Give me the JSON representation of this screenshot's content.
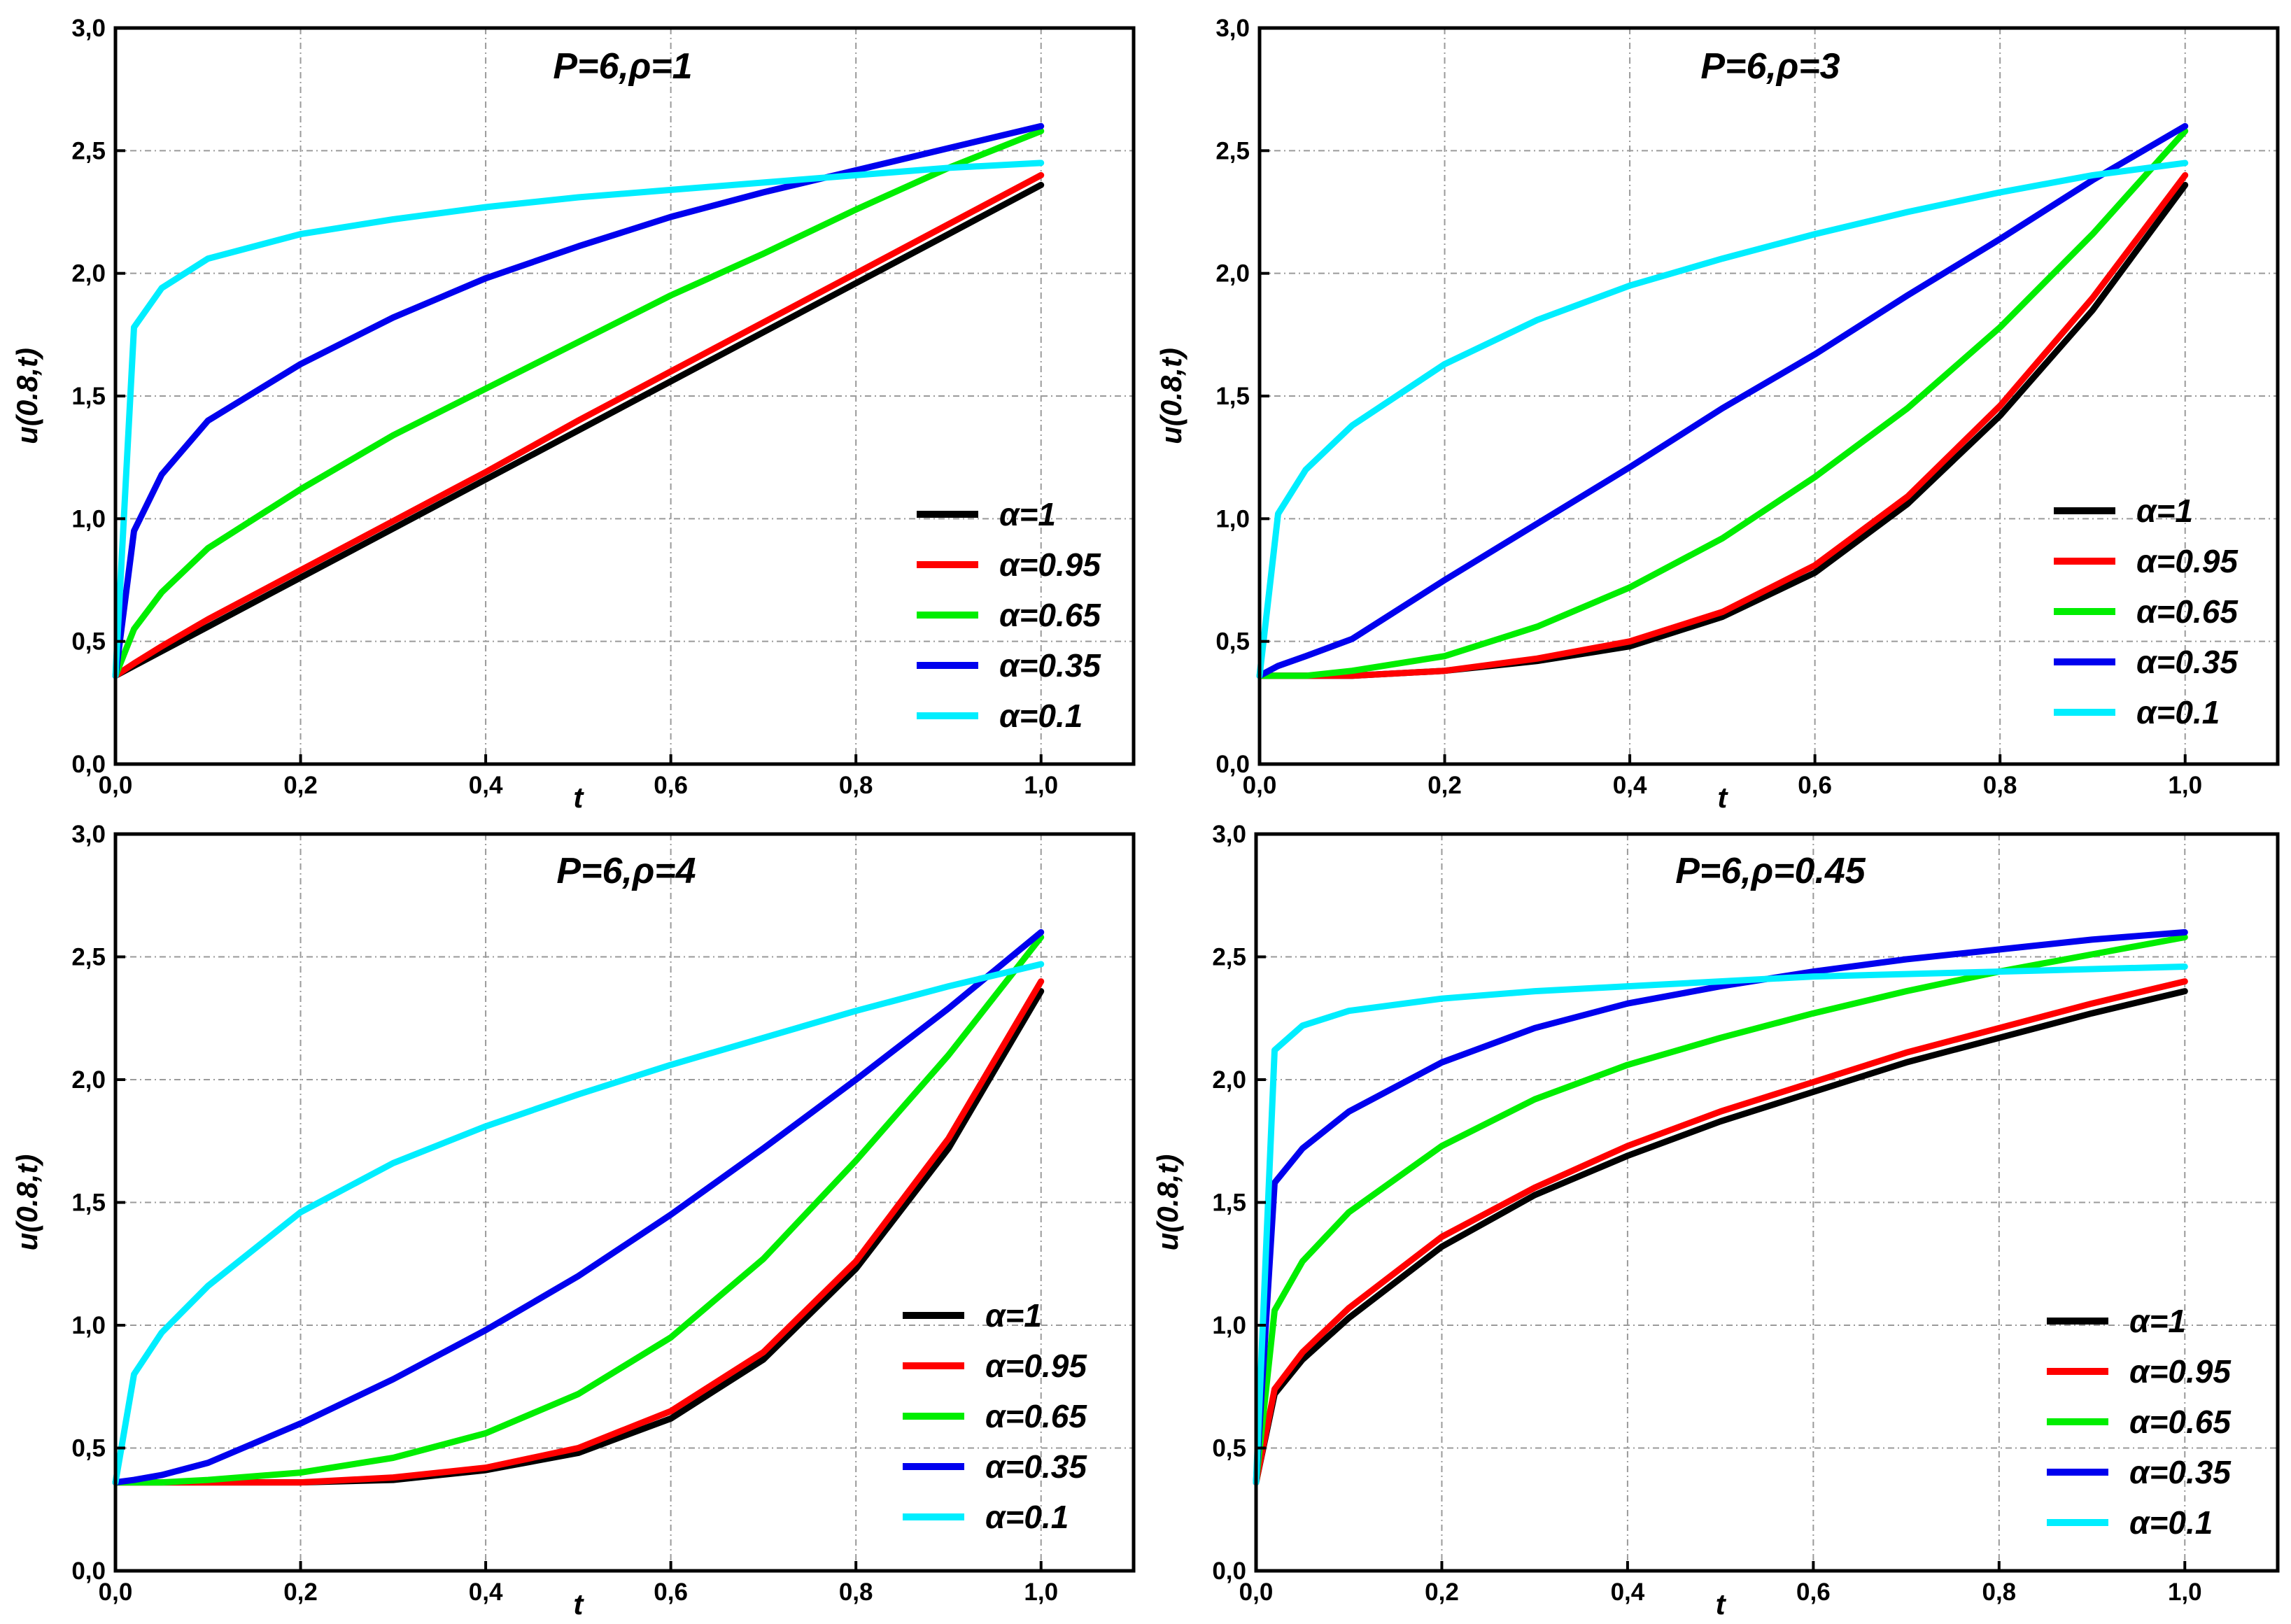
{
  "chart_data": [
    {
      "type": "line",
      "title": "P=6,ρ=1",
      "xlabel": "t",
      "ylabel": "u(0.8,t)",
      "xlim": [
        0,
        1.1
      ],
      "ylim": [
        0,
        3.0
      ],
      "x_ticks": [
        "0,0",
        "0,2",
        "0,4",
        "0,6",
        "0,8",
        "1,0"
      ],
      "y_ticks": [
        "0,0",
        "0,5",
        "1,0",
        "1,5",
        "2,0",
        "2,5",
        "3,0"
      ],
      "grid": true,
      "legend_position": "bottom-right",
      "x": [
        0.0,
        0.02,
        0.05,
        0.1,
        0.2,
        0.3,
        0.4,
        0.5,
        0.6,
        0.7,
        0.8,
        0.9,
        1.0
      ],
      "series": [
        {
          "name": "α=1",
          "color": "#000000",
          "values": [
            0.36,
            0.4,
            0.46,
            0.56,
            0.76,
            0.96,
            1.16,
            1.36,
            1.56,
            1.76,
            1.96,
            2.16,
            2.36
          ]
        },
        {
          "name": "α=0.95",
          "color": "#ff0000",
          "values": [
            0.36,
            0.41,
            0.48,
            0.59,
            0.79,
            0.99,
            1.19,
            1.4,
            1.6,
            1.8,
            2.0,
            2.2,
            2.4
          ]
        },
        {
          "name": "α=0.65",
          "color": "#00ee00",
          "values": [
            0.36,
            0.55,
            0.7,
            0.88,
            1.12,
            1.34,
            1.53,
            1.72,
            1.91,
            2.08,
            2.26,
            2.43,
            2.58
          ]
        },
        {
          "name": "α=0.35",
          "color": "#0000ee",
          "values": [
            0.36,
            0.95,
            1.18,
            1.4,
            1.63,
            1.82,
            1.98,
            2.11,
            2.23,
            2.33,
            2.42,
            2.51,
            2.6
          ]
        },
        {
          "name": "α=0.1",
          "color": "#00eeff",
          "values": [
            0.36,
            1.78,
            1.94,
            2.06,
            2.16,
            2.22,
            2.27,
            2.31,
            2.34,
            2.37,
            2.4,
            2.43,
            2.45
          ]
        }
      ]
    },
    {
      "type": "line",
      "title": "P=6,ρ=3",
      "xlabel": "t",
      "ylabel": "u(0.8,t)",
      "xlim": [
        0,
        1.1
      ],
      "ylim": [
        0,
        3.0
      ],
      "x_ticks": [
        "0,0",
        "0,2",
        "0,4",
        "0,6",
        "0,8",
        "1,0"
      ],
      "y_ticks": [
        "0,0",
        "0,5",
        "1,0",
        "1,5",
        "2,0",
        "2,5",
        "3,0"
      ],
      "grid": true,
      "legend_position": "bottom-right",
      "x": [
        0.0,
        0.02,
        0.05,
        0.1,
        0.2,
        0.3,
        0.4,
        0.5,
        0.6,
        0.7,
        0.8,
        0.9,
        1.0
      ],
      "series": [
        {
          "name": "α=1",
          "color": "#000000",
          "values": [
            0.36,
            0.36,
            0.36,
            0.36,
            0.38,
            0.42,
            0.48,
            0.6,
            0.78,
            1.06,
            1.42,
            1.85,
            2.36
          ]
        },
        {
          "name": "α=0.95",
          "color": "#ff0000",
          "values": [
            0.36,
            0.36,
            0.36,
            0.36,
            0.38,
            0.43,
            0.5,
            0.62,
            0.81,
            1.09,
            1.46,
            1.9,
            2.4
          ]
        },
        {
          "name": "α=0.65",
          "color": "#00ee00",
          "values": [
            0.36,
            0.36,
            0.36,
            0.38,
            0.44,
            0.56,
            0.72,
            0.92,
            1.17,
            1.45,
            1.78,
            2.16,
            2.58
          ]
        },
        {
          "name": "α=0.35",
          "color": "#0000ee",
          "values": [
            0.36,
            0.4,
            0.44,
            0.51,
            0.75,
            0.98,
            1.21,
            1.45,
            1.67,
            1.91,
            2.14,
            2.38,
            2.6
          ]
        },
        {
          "name": "α=0.1",
          "color": "#00eeff",
          "values": [
            0.36,
            1.02,
            1.2,
            1.38,
            1.63,
            1.81,
            1.95,
            2.06,
            2.16,
            2.25,
            2.33,
            2.4,
            2.45
          ]
        }
      ]
    },
    {
      "type": "line",
      "title": "P=6,ρ=4",
      "xlabel": "t",
      "ylabel": "u(0.8,t)",
      "xlim": [
        0,
        1.1
      ],
      "ylim": [
        0,
        3.0
      ],
      "x_ticks": [
        "0,0",
        "0,2",
        "0,4",
        "0,6",
        "0,8",
        "1,0"
      ],
      "y_ticks": [
        "0,0",
        "0,5",
        "1,0",
        "1,5",
        "2,0",
        "2,5",
        "3,0"
      ],
      "grid": true,
      "legend_position": "bottom-right",
      "x": [
        0.0,
        0.02,
        0.05,
        0.1,
        0.2,
        0.3,
        0.4,
        0.5,
        0.6,
        0.7,
        0.8,
        0.9,
        1.0
      ],
      "series": [
        {
          "name": "α=1",
          "color": "#000000",
          "values": [
            0.36,
            0.36,
            0.36,
            0.36,
            0.36,
            0.37,
            0.41,
            0.48,
            0.62,
            0.86,
            1.23,
            1.72,
            2.36
          ]
        },
        {
          "name": "α=0.95",
          "color": "#ff0000",
          "values": [
            0.36,
            0.36,
            0.36,
            0.36,
            0.36,
            0.38,
            0.42,
            0.5,
            0.65,
            0.89,
            1.26,
            1.76,
            2.4
          ]
        },
        {
          "name": "α=0.65",
          "color": "#00ee00",
          "values": [
            0.36,
            0.36,
            0.36,
            0.37,
            0.4,
            0.46,
            0.56,
            0.72,
            0.95,
            1.27,
            1.67,
            2.1,
            2.58
          ]
        },
        {
          "name": "α=0.35",
          "color": "#0000ee",
          "values": [
            0.36,
            0.37,
            0.39,
            0.44,
            0.6,
            0.78,
            0.98,
            1.2,
            1.45,
            1.72,
            2.0,
            2.29,
            2.6
          ]
        },
        {
          "name": "α=0.1",
          "color": "#00eeff",
          "values": [
            0.36,
            0.8,
            0.97,
            1.16,
            1.46,
            1.66,
            1.81,
            1.94,
            2.06,
            2.17,
            2.28,
            2.38,
            2.47
          ]
        }
      ]
    },
    {
      "type": "line",
      "title": "P=6,ρ=0.45",
      "xlabel": "t",
      "ylabel": "u(0.8,t)",
      "xlim": [
        0,
        1.1
      ],
      "ylim": [
        0,
        3.0
      ],
      "x_ticks": [
        "0,0",
        "0,2",
        "0,4",
        "0,6",
        "0,8",
        "1,0"
      ],
      "y_ticks": [
        "0,0",
        "0,5",
        "1,0",
        "1,5",
        "2,0",
        "2,5",
        "3,0"
      ],
      "grid": true,
      "legend_position": "bottom-right",
      "x": [
        0.0,
        0.02,
        0.05,
        0.1,
        0.2,
        0.3,
        0.4,
        0.5,
        0.6,
        0.7,
        0.8,
        0.9,
        1.0
      ],
      "series": [
        {
          "name": "α=1",
          "color": "#000000",
          "values": [
            0.36,
            0.72,
            0.86,
            1.03,
            1.32,
            1.53,
            1.69,
            1.83,
            1.95,
            2.07,
            2.17,
            2.27,
            2.36
          ]
        },
        {
          "name": "α=0.95",
          "color": "#ff0000",
          "values": [
            0.36,
            0.74,
            0.89,
            1.07,
            1.36,
            1.56,
            1.73,
            1.87,
            1.99,
            2.11,
            2.21,
            2.31,
            2.4
          ]
        },
        {
          "name": "α=0.65",
          "color": "#00ee00",
          "values": [
            0.36,
            1.06,
            1.26,
            1.46,
            1.73,
            1.92,
            2.06,
            2.17,
            2.27,
            2.36,
            2.44,
            2.51,
            2.58
          ]
        },
        {
          "name": "α=0.35",
          "color": "#0000ee",
          "values": [
            0.36,
            1.58,
            1.72,
            1.87,
            2.07,
            2.21,
            2.31,
            2.38,
            2.44,
            2.49,
            2.53,
            2.57,
            2.6
          ]
        },
        {
          "name": "α=0.1",
          "color": "#00eeff",
          "values": [
            0.36,
            2.12,
            2.22,
            2.28,
            2.33,
            2.36,
            2.38,
            2.4,
            2.42,
            2.43,
            2.44,
            2.45,
            2.46
          ]
        }
      ]
    }
  ]
}
